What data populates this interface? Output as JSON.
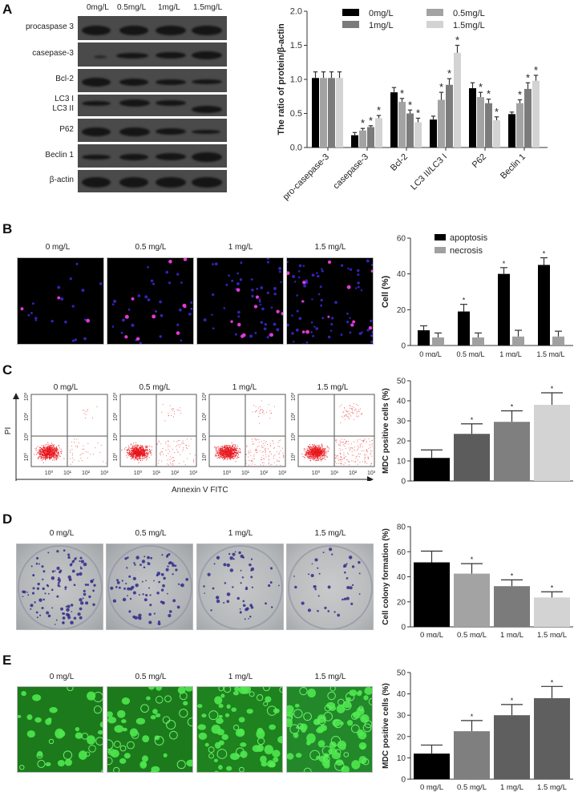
{
  "panels": {
    "A": {
      "letter": "A",
      "blot": {
        "lanes": [
          "0mg/L",
          "0.5mg/L",
          "1mg/L",
          "1.5mg/L"
        ],
        "rows": [
          "procaspase 3",
          "casepase-3",
          "Bcl-2",
          "LC3 I",
          "LC3 II",
          "P62",
          "Beclin 1",
          "β-actin"
        ]
      }
    },
    "B": {
      "letter": "B",
      "image_labels": [
        "0 mg/L",
        "0.5 mg/L",
        "1 mg/L",
        "1.5 mg/L"
      ]
    },
    "C": {
      "letter": "C",
      "image_labels": [
        "0 mg/L",
        "0.5  mg/L",
        "1 mg/L",
        "1.5 mg/L"
      ],
      "y_axis_label": "PI",
      "x_axis_label": "Annexin V FITC",
      "log_ticks": [
        "10⁰",
        "10¹",
        "10²",
        "10³"
      ]
    },
    "D": {
      "letter": "D",
      "image_labels": [
        "0 mg/L",
        "0.5 mg/L",
        "1 mg/L",
        "1.5 mg/L"
      ]
    },
    "E": {
      "letter": "E",
      "image_labels": [
        "0 mg/L",
        "0.5 mg/L",
        "1 mg/L",
        "1.5 mg/L"
      ]
    }
  },
  "colors": {
    "black": "#000000",
    "dark_gray": "#7b7b7b",
    "mid_gray": "#a0a0a0",
    "light_gray": "#d3d3d3",
    "flow_red": "#e8151b",
    "fluor_green": "#1e8a1e"
  },
  "chart_data": [
    {
      "id": "A",
      "type": "bar",
      "title": "",
      "xlabel": "",
      "ylabel": "The ratio of protein/β-actin",
      "ylim": [
        0,
        2.0
      ],
      "yticks": [
        "0.0",
        "0.5",
        "1.0",
        "1.5",
        "2.0"
      ],
      "categories": [
        "pro-casepase-3",
        "casepase-3",
        "Bcl-2",
        "LC3 II/LC3 I",
        "P62",
        "Beclin 1"
      ],
      "legend": [
        "0mg/L",
        "1mg/L",
        "0.5mg/L",
        "1.5mg/L"
      ],
      "series": [
        {
          "name": "0mg/L",
          "color": "#000000",
          "values": [
            1.02,
            0.18,
            0.81,
            0.41,
            0.87,
            0.49
          ],
          "errors": [
            0.09,
            0.04,
            0.07,
            0.05,
            0.08,
            0.03
          ],
          "sig": [
            false,
            false,
            false,
            false,
            false,
            false
          ]
        },
        {
          "name": "0.5mg/L",
          "color": "#a3a3a3",
          "values": [
            1.02,
            0.25,
            0.67,
            0.7,
            0.74,
            0.65
          ],
          "errors": [
            0.09,
            0.03,
            0.05,
            0.11,
            0.07,
            0.05
          ],
          "sig": [
            false,
            true,
            true,
            true,
            true,
            true
          ]
        },
        {
          "name": "1mg/L",
          "color": "#7b7b7b",
          "values": [
            1.02,
            0.3,
            0.5,
            0.92,
            0.65,
            0.86
          ],
          "errors": [
            0.09,
            0.02,
            0.05,
            0.09,
            0.06,
            0.09
          ],
          "sig": [
            false,
            true,
            true,
            true,
            true,
            true
          ]
        },
        {
          "name": "1.5mg/L",
          "color": "#d3d3d3",
          "values": [
            1.02,
            0.43,
            0.37,
            1.39,
            0.4,
            0.98
          ],
          "errors": [
            0.09,
            0.04,
            0.06,
            0.11,
            0.05,
            0.08
          ],
          "sig": [
            false,
            true,
            true,
            true,
            true,
            true
          ]
        }
      ]
    },
    {
      "id": "B",
      "type": "bar",
      "ylabel": "Cell (%)",
      "ylim": [
        0,
        60
      ],
      "yticks": [
        "0",
        "20",
        "40",
        "60"
      ],
      "categories": [
        "0 mg/L",
        "0.5 mg/L",
        "1 mg/L",
        "1.5 mg/L"
      ],
      "legend": [
        "apoptosis",
        "necrosis"
      ],
      "series": [
        {
          "name": "apoptosis",
          "color": "#000000",
          "values": [
            8.5,
            19,
            40,
            45
          ],
          "errors": [
            2.5,
            4,
            3.5,
            4
          ],
          "sig": [
            false,
            true,
            true,
            true
          ]
        },
        {
          "name": "necrosis",
          "color": "#a0a0a0",
          "values": [
            4.5,
            4.5,
            5,
            5
          ],
          "errors": [
            2.5,
            2.5,
            3.5,
            3
          ],
          "sig": [
            false,
            false,
            false,
            false
          ]
        }
      ]
    },
    {
      "id": "C",
      "type": "bar",
      "ylabel": "MDC positive cells (%)",
      "ylim": [
        0,
        50
      ],
      "yticks": [
        "0",
        "10",
        "20",
        "30",
        "40",
        "50"
      ],
      "categories": [
        "0 mg/L",
        "0.5 mg/L",
        "1 mg/L",
        "1.5 mg/L"
      ],
      "values": [
        11.5,
        23.5,
        29.5,
        38
      ],
      "errors": [
        4,
        5,
        5.5,
        6
      ],
      "sig": [
        false,
        true,
        true,
        true
      ],
      "colors": [
        "#000000",
        "#5c5c5c",
        "#7f7f7f",
        "#d3d3d3"
      ]
    },
    {
      "id": "D",
      "type": "bar",
      "ylabel": "Cell colony formation (%)",
      "ylim": [
        0,
        80
      ],
      "yticks": [
        "0",
        "20",
        "40",
        "60",
        "80"
      ],
      "categories": [
        "0 mg/L",
        "0.5 mg/L",
        "1 mg/L",
        "1.5 mg/L"
      ],
      "values": [
        51.5,
        42.5,
        32.5,
        23.5
      ],
      "errors": [
        9,
        8,
        5,
        4.5
      ],
      "sig": [
        false,
        true,
        true,
        true
      ],
      "colors": [
        "#000000",
        "#a3a3a3",
        "#7b7b7b",
        "#d3d3d3"
      ]
    },
    {
      "id": "E",
      "type": "bar",
      "ylabel": "MDC positive cells (%)",
      "ylim": [
        0,
        50
      ],
      "yticks": [
        "0",
        "10",
        "20",
        "30",
        "40",
        "50"
      ],
      "categories": [
        "0 mg/L",
        "0.5 mg/L",
        "1 mg/L",
        "1.5 mg/L"
      ],
      "values": [
        12,
        22.5,
        30,
        38
      ],
      "errors": [
        4,
        5,
        5,
        5.5
      ],
      "sig": [
        false,
        true,
        true,
        true
      ],
      "colors": [
        "#000000",
        "#7f7f7f",
        "#5f5f5f",
        "#5f5f5f"
      ]
    }
  ]
}
